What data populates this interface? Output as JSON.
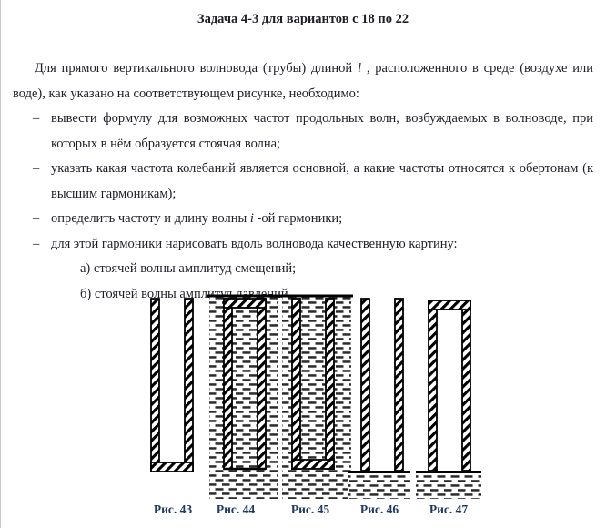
{
  "title": "Задача 4-3 для вариантов с 18 по 22",
  "intro": {
    "text_before_italic": "Для прямого вертикального волновода (трубы) длиной ",
    "italic_var": "l",
    "text_after_italic": " , расположенного в среде (воздухе или воде), как указано на соответствующем рисунке, необходимо:"
  },
  "list": {
    "marker": "–",
    "items": [
      {
        "text": "вывести формулу для возможных частот продольных волн, возбуждаемых в волноводе, при которых в нём образуется стоячая волна;"
      },
      {
        "text": "указать какая частота колебаний является основной, а какие частоты относятся к обертонам (к высшим гармоникам);"
      },
      {
        "text_before_italic": "определить частоту и длину волны ",
        "italic_var": "i",
        "text_after_italic": " -ой гармоники;"
      },
      {
        "text": "для этой гармоники нарисовать вдоль волновода качественную картину:"
      }
    ],
    "subitems": [
      {
        "text": "а) стоячей волны амплитуд смещений;"
      },
      {
        "text": "б) стоячей волны амплитуд давлений."
      }
    ]
  },
  "figures": [
    {
      "id": "fig43",
      "caption": "Рис. 43",
      "top_end": "open",
      "bottom_end": "closed",
      "medium_inside": "air",
      "medium_outside": "air",
      "submerged": false,
      "on_water_surface": false
    },
    {
      "id": "fig44",
      "caption": "Рис. 44",
      "top_end": "closed",
      "bottom_end": "open",
      "medium_inside": "water",
      "medium_outside": "water",
      "submerged": true,
      "on_water_surface": false
    },
    {
      "id": "fig45",
      "caption": "Рис. 45",
      "top_end": "open",
      "bottom_end": "closed",
      "medium_inside": "water",
      "medium_outside": "water",
      "submerged": true,
      "on_water_surface": false
    },
    {
      "id": "fig46",
      "caption": "Рис. 46",
      "top_end": "open",
      "bottom_end": "open",
      "medium_inside": "air",
      "medium_outside": "air",
      "submerged": false,
      "on_water_surface": true
    },
    {
      "id": "fig47",
      "caption": "Рис. 47",
      "top_end": "closed",
      "bottom_end": "open",
      "medium_inside": "air",
      "medium_outside": "air",
      "submerged": false,
      "on_water_surface": true
    }
  ],
  "colors": {
    "body_text": "#1e1e28",
    "caption_text": "#1f3864",
    "figure_ink": "#000000",
    "water_dash": "#2b2b2b"
  }
}
